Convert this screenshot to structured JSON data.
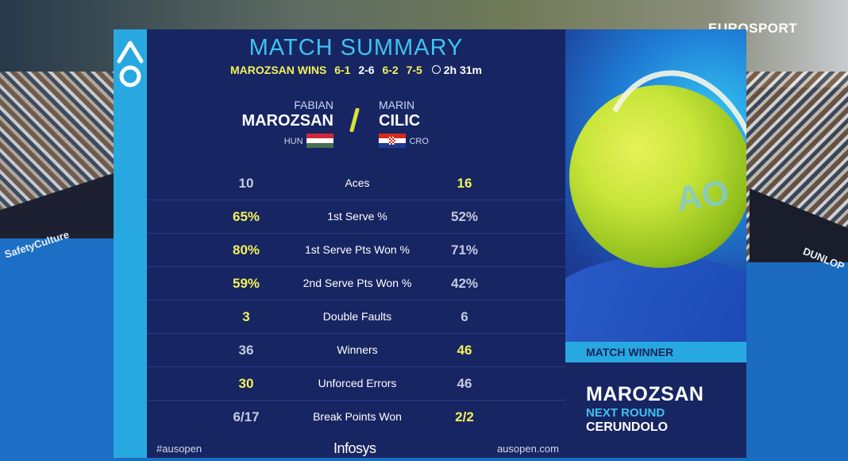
{
  "broadcaster": "EUROSPORT",
  "background_ads": {
    "left_1": "SafetyCulture",
    "right_1": "DUNLOP"
  },
  "header": {
    "title": "MATCH SUMMARY",
    "result_text": "MAROZSAN WINS",
    "set_scores": [
      "6-1",
      "2-6",
      "6-2",
      "7-5"
    ],
    "set_winner_is_p1": [
      true,
      false,
      true,
      true
    ],
    "duration": "2h 31m"
  },
  "player1": {
    "first_name": "FABIAN",
    "last_name": "MAROZSAN",
    "country": "HUN"
  },
  "player2": {
    "first_name": "MARIN",
    "last_name": "CILIC",
    "country": "CRO"
  },
  "stats": [
    {
      "label": "Aces",
      "p1": "10",
      "p2": "16",
      "leader": "p2"
    },
    {
      "label": "1st Serve %",
      "p1": "65%",
      "p2": "52%",
      "leader": "p1"
    },
    {
      "label": "1st Serve Pts Won %",
      "p1": "80%",
      "p2": "71%",
      "leader": "p1"
    },
    {
      "label": "2nd Serve Pts Won %",
      "p1": "59%",
      "p2": "42%",
      "leader": "p1"
    },
    {
      "label": "Double Faults",
      "p1": "3",
      "p2": "6",
      "leader": "p1"
    },
    {
      "label": "Winners",
      "p1": "36",
      "p2": "46",
      "leader": "p2"
    },
    {
      "label": "Unforced Errors",
      "p1": "30",
      "p2": "46",
      "leader": "p1"
    },
    {
      "label": "Break Points Won",
      "p1": "6/17",
      "p2": "2/2",
      "leader": "p2"
    }
  ],
  "footer": {
    "hashtag": "#ausopen",
    "sponsor": "Infosys",
    "website": "ausopen.com"
  },
  "winner_panel": {
    "label": "MATCH WINNER",
    "winner": "MAROZSAN",
    "next_round_label": "NEXT ROUND",
    "next_opponent": "CERUNDOLO"
  },
  "colors": {
    "panel": "#1b2a6b",
    "accent_cyan": "#28a8e0",
    "highlight_yellow": "#f2f25a"
  },
  "icons": [
    "ao-logo-icon",
    "clock-icon",
    "hungary-flag-icon",
    "croatia-flag-icon",
    "tennis-ball-image"
  ]
}
